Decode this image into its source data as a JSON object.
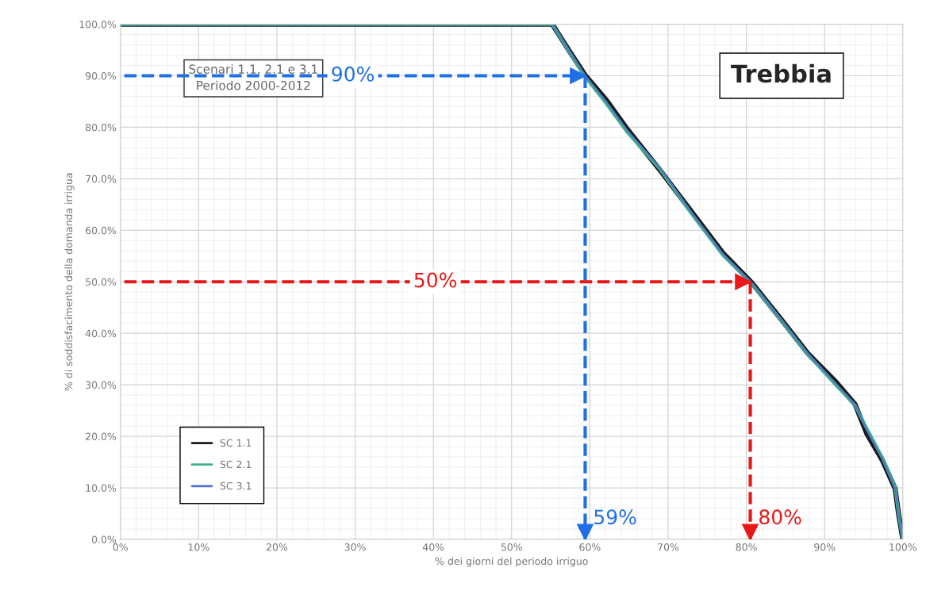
{
  "chart_data": {
    "type": "line",
    "title": "Trebbia",
    "xlabel": "% dei giorni del periodo irriguo",
    "ylabel": "% di soddisfacimento della domanda irrigua",
    "annotations": [
      "Scenari 1.1, 2.1 e 3.1\nPeriodo 2000-2012"
    ],
    "x": [
      0,
      55.2,
      57.5,
      59.4,
      62.1,
      64.8,
      68.9,
      73.0,
      77.0,
      80.7,
      84.2,
      87.8,
      91.3,
      93.9,
      95.4,
      97.4,
      99.0,
      99.5,
      100
    ],
    "series": [
      {
        "name": "SC 1.1",
        "color": "#1a1a1a",
        "values": [
          100,
          100,
          94.5,
          90.1,
          85.3,
          79.6,
          71.8,
          63.6,
          55.6,
          49.8,
          43.2,
          36.2,
          30.8,
          26.2,
          20.5,
          15.3,
          9.9,
          4.5,
          0
        ]
      },
      {
        "name": "SC 2.1",
        "color": "#3cb38a",
        "values": [
          100,
          100,
          94.3,
          89.8,
          84.6,
          79.0,
          72.0,
          63.2,
          55.2,
          49.6,
          43.0,
          36.0,
          30.2,
          26.0,
          21.5,
          15.8,
          10.2,
          4.5,
          0
        ]
      },
      {
        "name": "SC 3.1",
        "color": "#5570d0",
        "values": [
          100,
          100,
          94.4,
          90.0,
          85.0,
          79.4,
          72.2,
          63.4,
          55.4,
          49.7,
          43.1,
          36.1,
          30.5,
          26.1,
          21.2,
          15.6,
          10.0,
          4.5,
          0
        ]
      }
    ],
    "xlim": [
      0,
      100
    ],
    "ylim": [
      0,
      100
    ],
    "xticks": [
      {
        "value": 0,
        "label": "0%"
      },
      {
        "value": 10,
        "label": "10%"
      },
      {
        "value": 20,
        "label": "20%"
      },
      {
        "value": 30,
        "label": "30%"
      },
      {
        "value": 40,
        "label": "40%"
      },
      {
        "value": 50,
        "label": "50%"
      },
      {
        "value": 60,
        "label": "60%"
      },
      {
        "value": 70,
        "label": "70%"
      },
      {
        "value": 80,
        "label": "80%"
      },
      {
        "value": 90,
        "label": "90%"
      },
      {
        "value": 100,
        "label": "100%"
      }
    ],
    "yticks": [
      {
        "value": 0,
        "label": "0.0%"
      },
      {
        "value": 10,
        "label": "10.0%"
      },
      {
        "value": 20,
        "label": "20.0%"
      },
      {
        "value": 30,
        "label": "30.0%"
      },
      {
        "value": 40,
        "label": "40.0%"
      },
      {
        "value": 50,
        "label": "50.0%"
      },
      {
        "value": 60,
        "label": "60.0%"
      },
      {
        "value": 70,
        "label": "70.0%"
      },
      {
        "value": 80,
        "label": "80.0%"
      },
      {
        "value": 90,
        "label": "90.0%"
      },
      {
        "value": 100,
        "label": "100.0%"
      }
    ],
    "ref_lines": [
      {
        "axis": "y",
        "value": 90,
        "label": "90%",
        "color": "#1f6fe6",
        "line_style": "dashed"
      },
      {
        "axis": "x",
        "value": 59.4,
        "label": "59%",
        "color": "#1f6fe6",
        "line_style": "dashed"
      },
      {
        "axis": "y",
        "value": 50,
        "label": "50%",
        "color": "#e81818",
        "line_style": "dashed"
      },
      {
        "axis": "x",
        "value": 80.5,
        "label": "80%",
        "color": "#e81818",
        "line_style": "dashed"
      }
    ],
    "grid": true,
    "legend": "bottom left",
    "marker": "none",
    "line_style": "solid"
  }
}
